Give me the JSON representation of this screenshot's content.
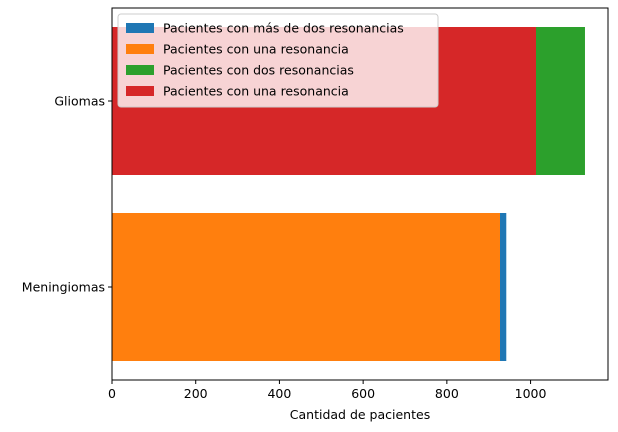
{
  "chart_data": {
    "type": "bar",
    "orientation": "horizontal",
    "stacked": true,
    "title": "",
    "xlabel": "Cantidad de pacientes",
    "ylabel": "",
    "categories": [
      "Meningiomas",
      "Gliomas"
    ],
    "xlim": [
      0,
      1185
    ],
    "xticks": [
      0,
      200,
      400,
      600,
      800,
      1000
    ],
    "grid": false,
    "legend_position": "top-left",
    "series": [
      {
        "name": "Pacientes con más de dos resonancias",
        "color": "#1f77b4",
        "values": [
          15,
          0
        ]
      },
      {
        "name": "Pacientes con una resonancia",
        "color": "#ff7f0e",
        "values": [
          927,
          0
        ]
      },
      {
        "name": "Pacientes con dos resonancias",
        "color": "#2ca02c",
        "values": [
          0,
          117
        ]
      },
      {
        "name": "Pacientes con una resonancia",
        "color": "#d62728",
        "values": [
          0,
          1013
        ]
      }
    ],
    "stack_order": [
      1,
      0,
      3,
      2
    ]
  }
}
